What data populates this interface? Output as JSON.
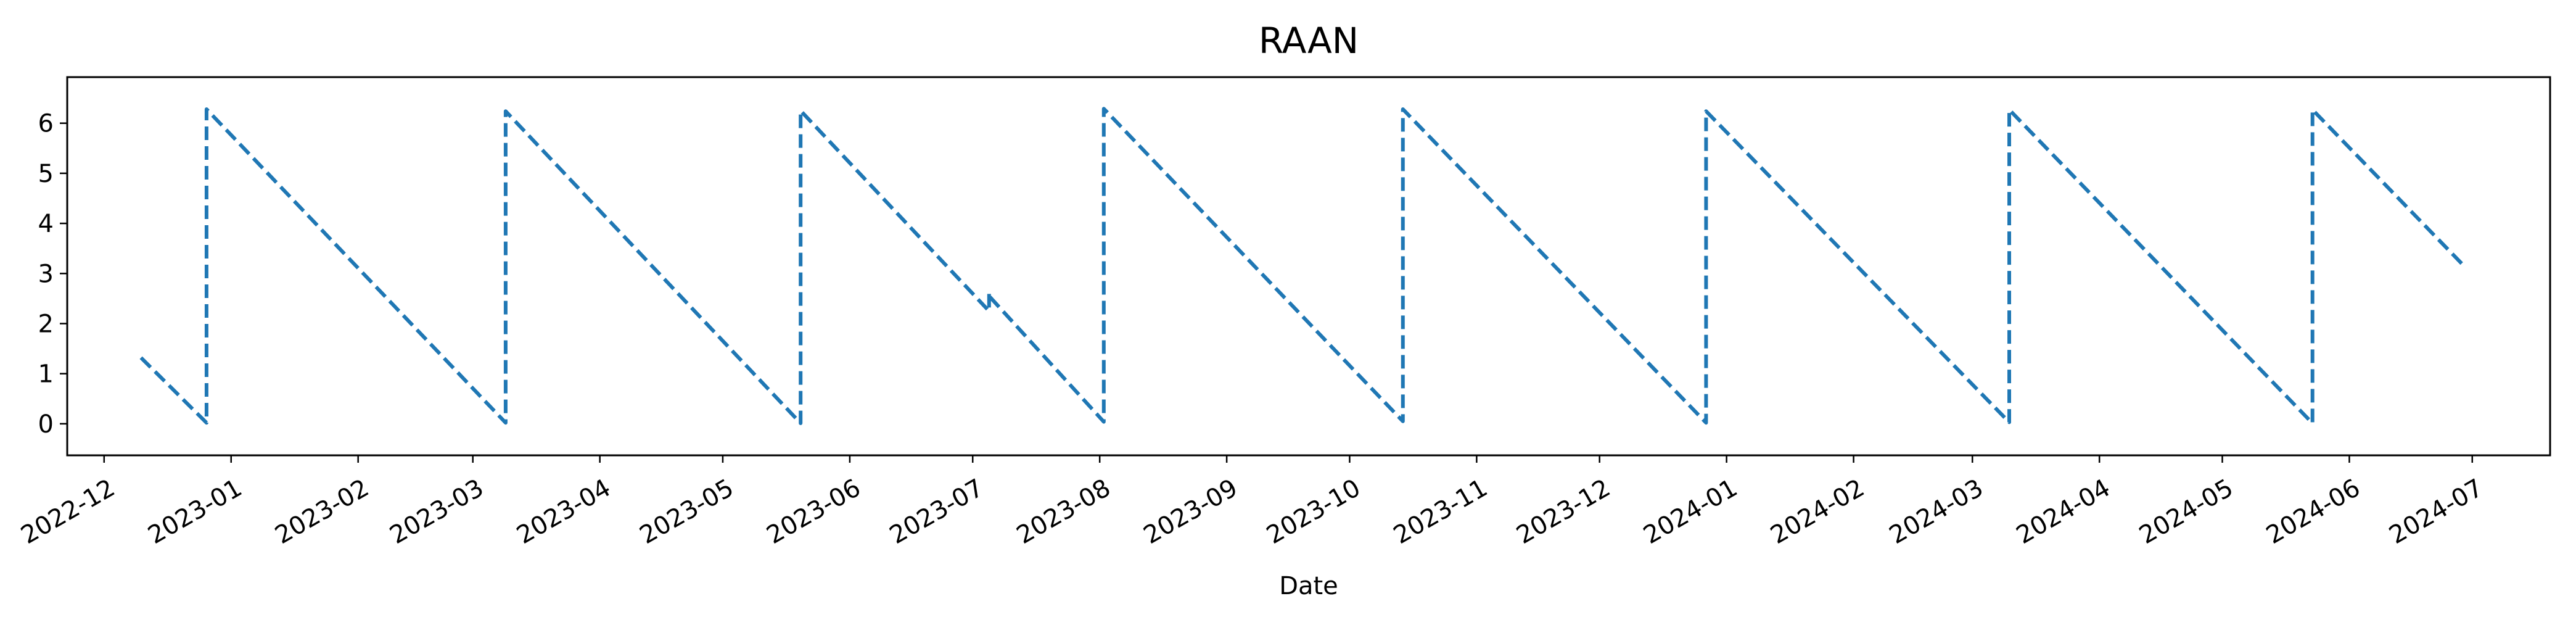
{
  "chart_data": {
    "type": "line",
    "title": "RAAN",
    "xlabel": "Date",
    "ylabel": "",
    "x_axis_type": "date",
    "xlim": [
      "2022-11-22",
      "2024-07-20"
    ],
    "ylim": [
      -0.63,
      6.92
    ],
    "xticks": [
      "2022-12-01",
      "2023-01-01",
      "2023-02-01",
      "2023-03-01",
      "2023-04-01",
      "2023-05-01",
      "2023-06-01",
      "2023-07-01",
      "2023-08-01",
      "2023-09-01",
      "2023-10-01",
      "2023-11-01",
      "2023-12-01",
      "2024-01-01",
      "2024-02-01",
      "2024-03-01",
      "2024-04-01",
      "2024-05-01",
      "2024-06-01",
      "2024-07-01"
    ],
    "xtick_labels": [
      "2022-12",
      "2023-01",
      "2023-02",
      "2023-03",
      "2023-04",
      "2023-05",
      "2023-06",
      "2023-07",
      "2023-08",
      "2023-09",
      "2023-10",
      "2023-11",
      "2023-12",
      "2024-01",
      "2024-02",
      "2024-03",
      "2024-04",
      "2024-05",
      "2024-06",
      "2024-07"
    ],
    "yticks": [
      0,
      1,
      2,
      3,
      4,
      5,
      6
    ],
    "ytick_labels": [
      "0",
      "1",
      "2",
      "3",
      "4",
      "5",
      "6"
    ],
    "grid": false,
    "legend": "none",
    "series": [
      {
        "color": "#1f77b4",
        "linestyle": "dashed",
        "points": [
          {
            "x": "2022-12-10",
            "y": 1.32
          },
          {
            "x": "2022-12-26",
            "y": 0.02
          },
          {
            "x": "2022-12-26",
            "y": 6.28
          },
          {
            "x": "2023-03-09",
            "y": 0.02
          },
          {
            "x": "2023-03-09",
            "y": 6.24
          },
          {
            "x": "2023-05-20",
            "y": 0.01
          },
          {
            "x": "2023-05-20",
            "y": 6.25
          },
          {
            "x": "2023-07-05",
            "y": 2.25
          },
          {
            "x": "2023-07-05",
            "y": 2.62
          },
          {
            "x": "2023-07-05",
            "y": 2.55
          },
          {
            "x": "2023-08-02",
            "y": 0.04
          },
          {
            "x": "2023-08-02",
            "y": 6.29
          },
          {
            "x": "2023-10-14",
            "y": 0.05
          },
          {
            "x": "2023-10-14",
            "y": 6.28
          },
          {
            "x": "2023-12-27",
            "y": 0.02
          },
          {
            "x": "2023-12-27",
            "y": 6.24
          },
          {
            "x": "2024-03-10",
            "y": 0.03
          },
          {
            "x": "2024-03-10",
            "y": 6.27
          },
          {
            "x": "2024-05-23",
            "y": 0.01
          },
          {
            "x": "2024-05-23",
            "y": 6.27
          },
          {
            "x": "2024-06-29",
            "y": 3.15
          }
        ]
      }
    ]
  }
}
